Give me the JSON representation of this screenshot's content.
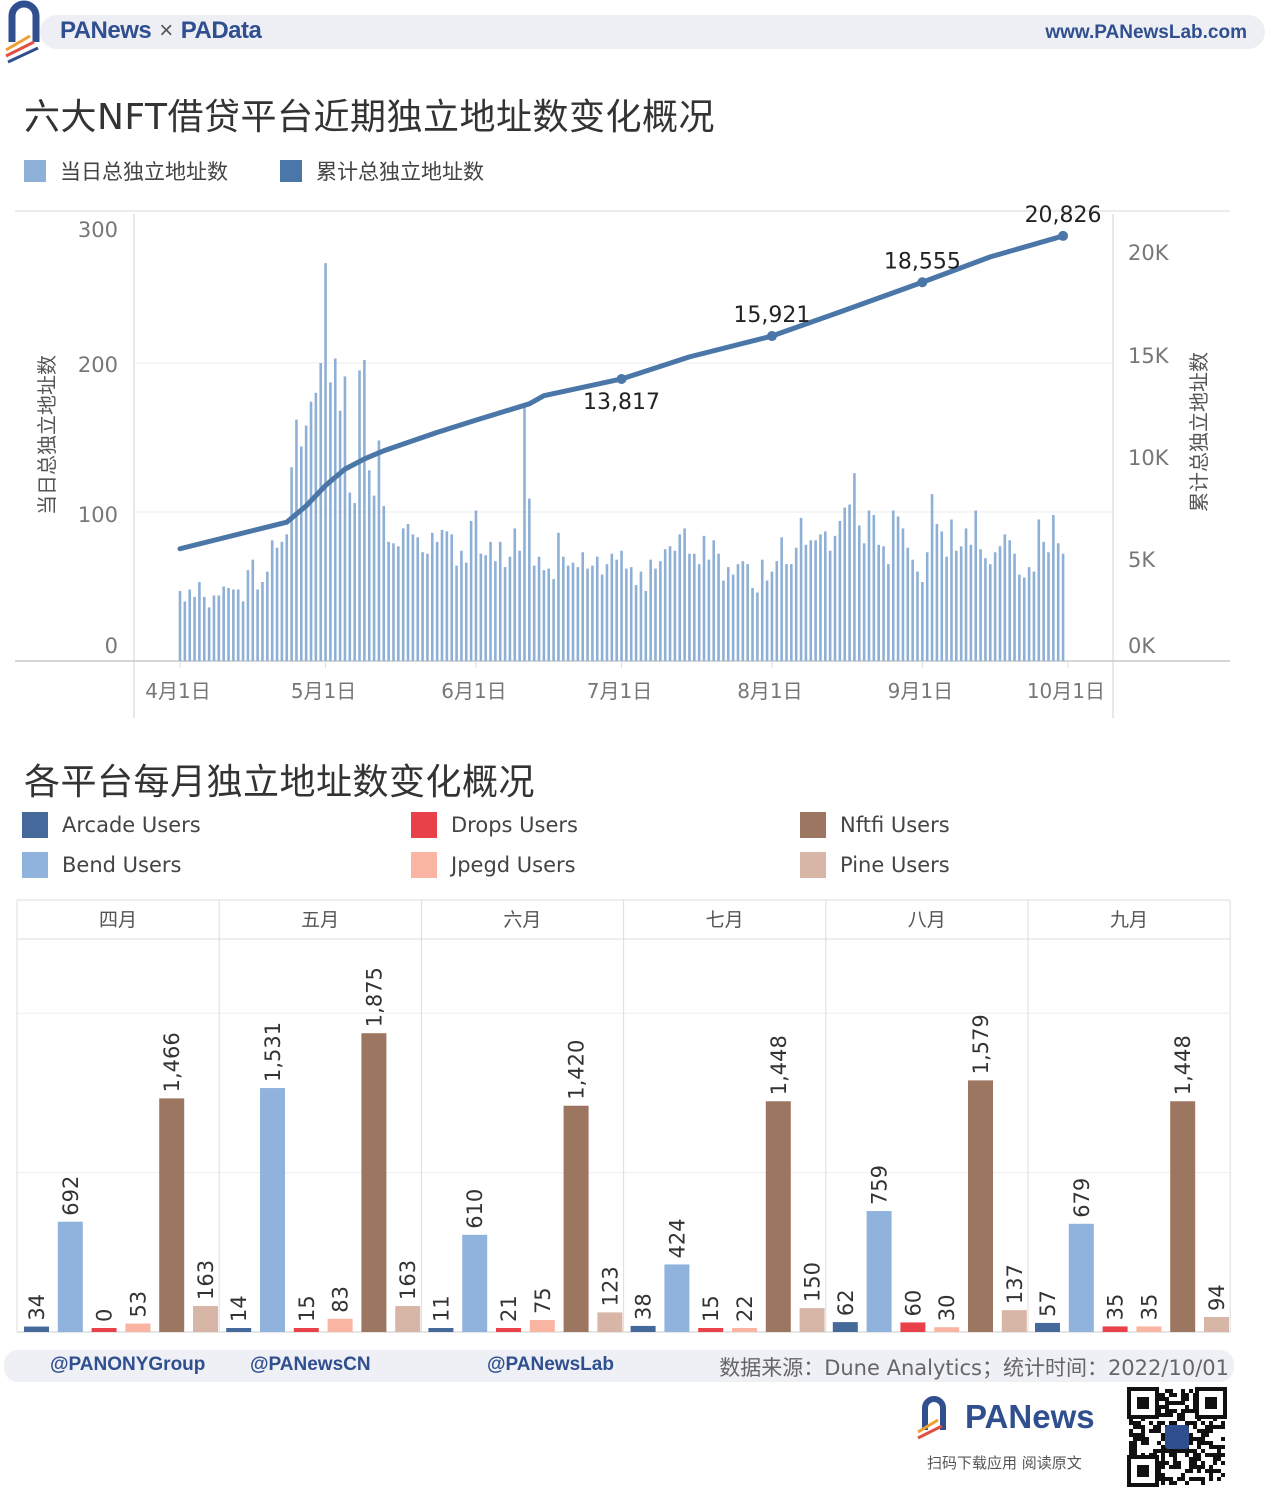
{
  "header": {
    "brand_left": "PANews",
    "brand_sep": "×",
    "brand_right": "PAData",
    "website": "www.PANewsLab.com"
  },
  "colors": {
    "daily_bar": "#8fb0d6",
    "cumulative_line": "#4a76a8",
    "arcade": "#44699a",
    "bend": "#8fb3dc",
    "drops": "#e8414a",
    "jpegd": "#f9b5a1",
    "nftfi": "#9c7660",
    "pine": "#d8b6a7",
    "brand": "#2f4f8f"
  },
  "chart_data": [
    {
      "type": "bar+line",
      "title": "六大NFT借贷平台近期独立地址数变化概况",
      "legend": [
        "当日总独立地址数",
        "累计总独立地址数"
      ],
      "legend_placement": "top-left",
      "ylabel": "当日总独立地址数",
      "y2label": "累计总独立地址数",
      "ylim": [
        0,
        300
      ],
      "y2lim": [
        0,
        21900
      ],
      "yticks": [
        "0",
        "100",
        "200",
        "300"
      ],
      "y2ticks": [
        "0K",
        "5K",
        "10K",
        "15K",
        "20K"
      ],
      "xticks": [
        "4月1日",
        "5月1日",
        "6月1日",
        "7月1日",
        "8月1日",
        "9月1日",
        "10月1日"
      ],
      "grid": true,
      "daily_values": [
        47,
        40,
        48,
        43,
        53,
        43,
        36,
        44,
        44,
        50,
        49,
        48,
        48,
        40,
        61,
        68,
        48,
        53,
        60,
        81,
        76,
        80,
        85,
        130,
        162,
        144,
        158,
        174,
        180,
        200,
        267,
        187,
        203,
        168,
        191,
        113,
        106,
        195,
        202,
        128,
        111,
        148,
        104,
        80,
        79,
        77,
        89,
        92,
        85,
        83,
        73,
        72,
        86,
        80,
        88,
        87,
        85,
        64,
        74,
        66,
        94,
        101,
        72,
        71,
        80,
        67,
        80,
        63,
        70,
        89,
        74,
        172,
        109,
        64,
        70,
        61,
        62,
        55,
        86,
        70,
        64,
        66,
        63,
        73,
        62,
        64,
        70,
        58,
        65,
        72,
        68,
        74,
        62,
        63,
        51,
        60,
        47,
        68,
        62,
        67,
        75,
        77,
        74,
        85,
        89,
        72,
        72,
        65,
        84,
        68,
        81,
        72,
        54,
        63,
        58,
        65,
        67,
        65,
        49,
        46,
        68,
        54,
        60,
        67,
        83,
        65,
        65,
        76,
        96,
        78,
        81,
        81,
        85,
        87,
        74,
        84,
        94,
        103,
        105,
        126,
        91,
        79,
        101,
        98,
        78,
        77,
        65,
        101,
        97,
        89,
        76,
        68,
        60,
        53,
        73,
        112,
        92,
        87,
        70,
        95,
        74,
        77,
        89,
        78,
        101,
        75,
        69,
        65,
        73,
        77,
        85,
        81,
        72,
        58,
        56,
        63,
        60,
        95,
        80,
        73,
        98,
        79,
        72
      ],
      "cumulative": [
        {
          "date": "4/1",
          "value": 5500
        },
        {
          "date": "4/23",
          "value": 6800
        },
        {
          "date": "4/27",
          "value": 7600
        },
        {
          "date": "5/1",
          "value": 8600
        },
        {
          "date": "5/5",
          "value": 9400
        },
        {
          "date": "5/9",
          "value": 9900
        },
        {
          "date": "5/13",
          "value": 10300
        },
        {
          "date": "5/24",
          "value": 11200
        },
        {
          "date": "6/1",
          "value": 11800
        },
        {
          "date": "6/12",
          "value": 12600
        },
        {
          "date": "6/15",
          "value": 13000
        },
        {
          "date": "7/1",
          "value": 13817,
          "label": "13,817"
        },
        {
          "date": "7/15",
          "value": 14900
        },
        {
          "date": "8/1",
          "value": 15921,
          "label": "15,921"
        },
        {
          "date": "8/15",
          "value": 17100
        },
        {
          "date": "9/1",
          "value": 18555,
          "label": "18,555"
        },
        {
          "date": "9/15",
          "value": 19800
        },
        {
          "date": "9/30",
          "value": 20826,
          "label": "20,826"
        }
      ]
    },
    {
      "type": "bar",
      "title": "各平台每月独立地址数变化概况",
      "legend_placement": "top",
      "categories": [
        "四月",
        "五月",
        "六月",
        "七月",
        "八月",
        "九月"
      ],
      "ylim": [
        0,
        2460
      ],
      "grid": true,
      "series": [
        {
          "name": "Arcade Users",
          "key": "arcade",
          "values": [
            34,
            14,
            11,
            38,
            62,
            57
          ],
          "labels": [
            "34",
            "14",
            "11",
            "38",
            "62",
            "57"
          ]
        },
        {
          "name": "Bend Users",
          "key": "bend",
          "values": [
            692,
            1531,
            610,
            424,
            759,
            679
          ],
          "labels": [
            "692",
            "1,531",
            "610",
            "424",
            "759",
            "679"
          ]
        },
        {
          "name": "Drops Users",
          "key": "drops",
          "values": [
            0,
            15,
            21,
            15,
            60,
            35
          ],
          "labels": [
            "0",
            "15",
            "21",
            "15",
            "60",
            "35"
          ]
        },
        {
          "name": "Jpegd Users",
          "key": "jpegd",
          "values": [
            53,
            83,
            75,
            22,
            30,
            35
          ],
          "labels": [
            "53",
            "83",
            "75",
            "22",
            "30",
            "35"
          ]
        },
        {
          "name": "Nftfi Users",
          "key": "nftfi",
          "values": [
            1466,
            1875,
            1420,
            1448,
            1579,
            1448
          ],
          "labels": [
            "1,466",
            "1,875",
            "1,420",
            "1,448",
            "1,579",
            "1,448"
          ]
        },
        {
          "name": "Pine Users",
          "key": "pine",
          "values": [
            163,
            163,
            123,
            150,
            137,
            94
          ],
          "labels": [
            "163",
            "163",
            "123",
            "150",
            "137",
            "94"
          ]
        }
      ]
    }
  ],
  "footer": {
    "twitter_1": "@PANONYGroup",
    "twitter_2": "@PANewsCN",
    "facebook": "@PANewsLab",
    "source": "数据来源：Dune Analytics；统计时间：2022/10/01",
    "logo": "PANews",
    "caption": "扫码下载应用  阅读原文"
  }
}
